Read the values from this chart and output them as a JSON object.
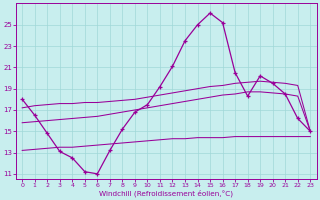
{
  "x_hours": [
    0,
    1,
    2,
    3,
    4,
    5,
    6,
    7,
    8,
    9,
    10,
    11,
    12,
    13,
    14,
    15,
    16,
    17,
    18,
    19,
    20,
    21,
    22,
    23
  ],
  "series_temp": [
    18.0,
    16.5,
    14.8,
    13.1,
    12.5,
    11.2,
    11.0,
    13.2,
    15.2,
    16.8,
    17.5,
    19.2,
    21.1,
    23.5,
    25.0,
    26.1,
    25.2,
    20.5,
    18.3,
    20.2,
    19.5,
    18.5,
    16.2,
    15.0
  ],
  "series_upper": [
    17.2,
    17.4,
    17.5,
    17.6,
    17.6,
    17.7,
    17.7,
    17.8,
    17.9,
    18.0,
    18.2,
    18.4,
    18.6,
    18.8,
    19.0,
    19.2,
    19.3,
    19.5,
    19.6,
    19.7,
    19.6,
    19.5,
    19.3,
    15.0
  ],
  "series_mid": [
    15.8,
    15.9,
    16.0,
    16.1,
    16.2,
    16.3,
    16.4,
    16.6,
    16.8,
    17.0,
    17.2,
    17.4,
    17.6,
    17.8,
    18.0,
    18.2,
    18.4,
    18.5,
    18.7,
    18.7,
    18.6,
    18.5,
    18.3,
    15.0
  ],
  "series_bot": [
    13.2,
    13.3,
    13.4,
    13.5,
    13.5,
    13.6,
    13.7,
    13.8,
    13.9,
    14.0,
    14.1,
    14.2,
    14.3,
    14.3,
    14.4,
    14.4,
    14.4,
    14.5,
    14.5,
    14.5,
    14.5,
    14.5,
    14.5,
    14.5
  ],
  "line_color": "#990099",
  "bg_color": "#c8eeee",
  "grid_color": "#a0d8d8",
  "xlabel": "Windchill (Refroidissement éolien,°C)",
  "ylim": [
    10.5,
    27.0
  ],
  "xlim": [
    -0.5,
    23.5
  ],
  "yticks": [
    11,
    13,
    15,
    17,
    19,
    21,
    23,
    25
  ],
  "xticks": [
    0,
    1,
    2,
    3,
    4,
    5,
    6,
    7,
    8,
    9,
    10,
    11,
    12,
    13,
    14,
    15,
    16,
    17,
    18,
    19,
    20,
    21,
    22,
    23
  ]
}
